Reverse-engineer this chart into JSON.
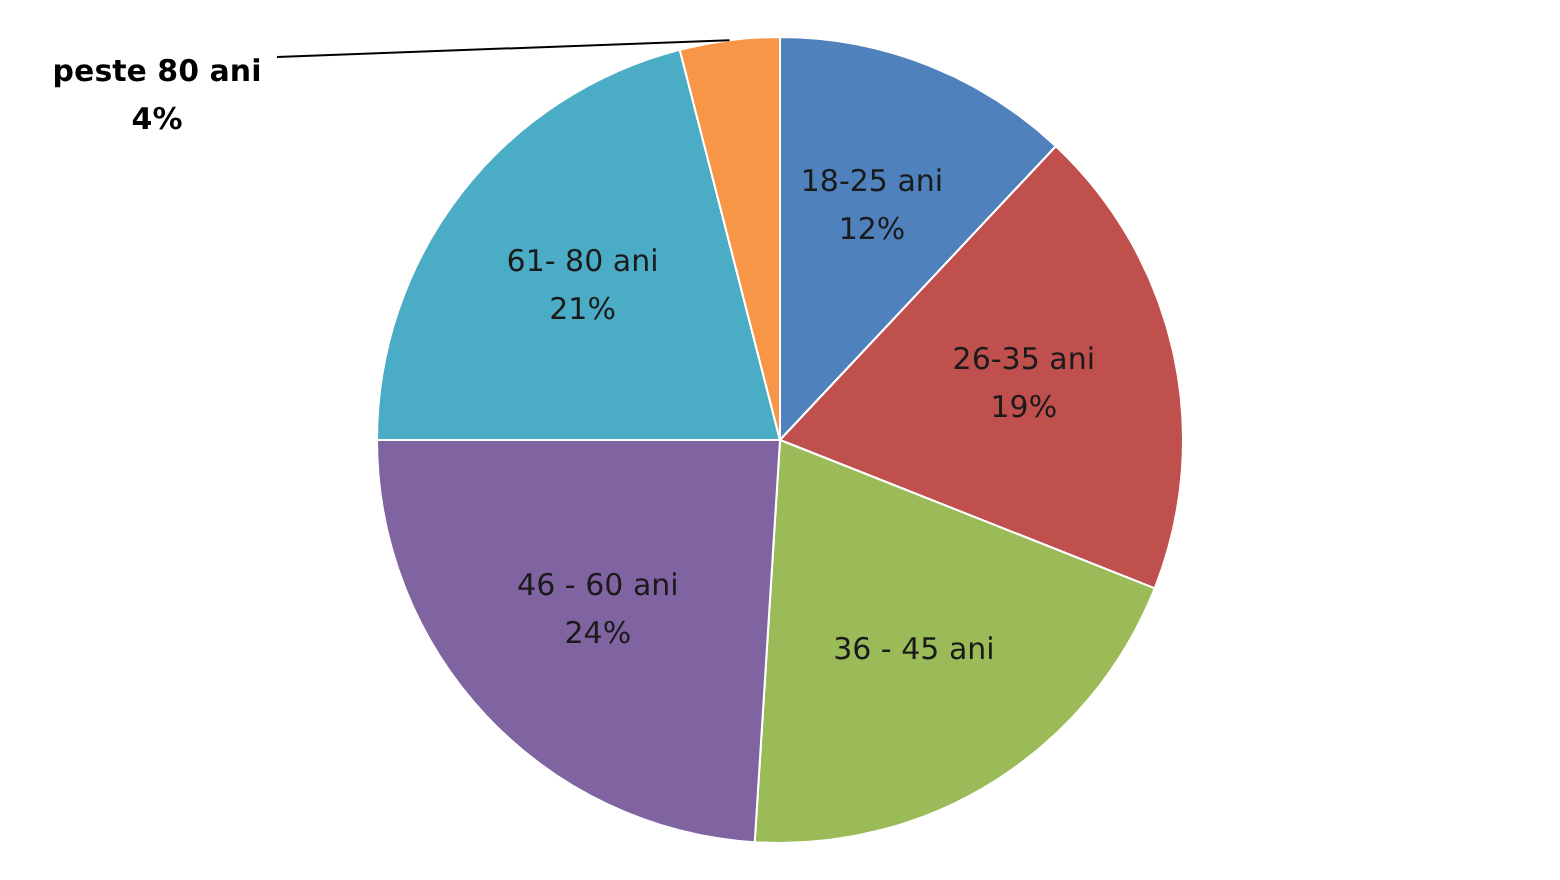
{
  "chart_data": {
    "type": "pie",
    "categories": [
      "18-25 ani",
      "26-35 ani",
      "36 - 45 ani",
      "46 - 60 ani",
      "61- 80 ani",
      "peste 80 ani"
    ],
    "values": [
      12,
      19,
      20,
      24,
      21,
      4
    ],
    "value_labels": [
      "12%",
      "19%",
      null,
      "24%",
      "21%",
      "4%"
    ],
    "colors": [
      "#4f81bd",
      "#c0504d",
      "#9bbb59",
      "#8064a2",
      "#4bacc6",
      "#f79646"
    ],
    "legend": false
  }
}
